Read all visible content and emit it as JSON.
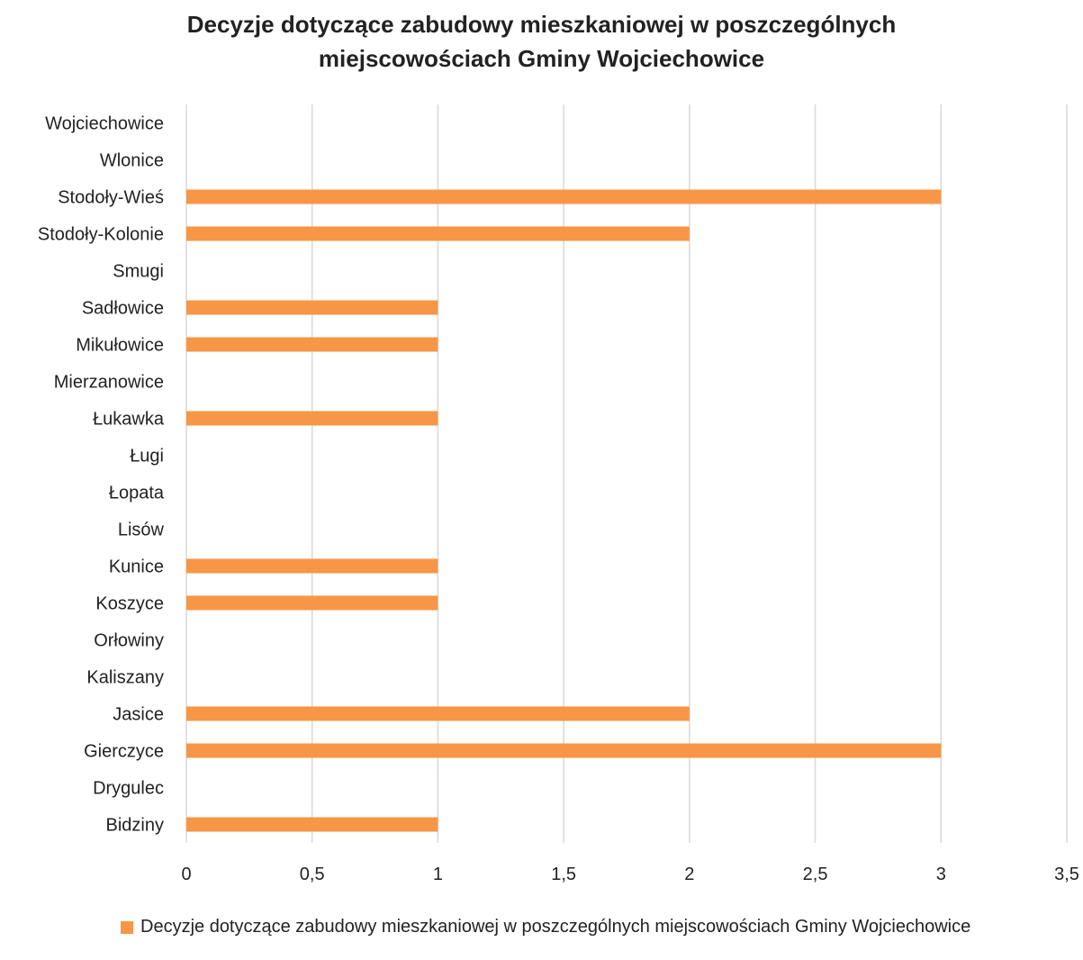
{
  "chart_data": {
    "type": "bar",
    "orientation": "horizontal",
    "title_lines": [
      "Decyzje dotyczące zabudowy mieszkaniowej w poszczególnych",
      "miejscowościach Gminy Wojciechowice"
    ],
    "categories": [
      "Bidziny",
      "Drygulec",
      "Gierczyce",
      "Jasice",
      "Kaliszany",
      "Orłowiny",
      "Koszyce",
      "Kunice",
      "Lisów",
      "Łopata",
      "Ługi",
      "Łukawka",
      "Mierzanowice",
      "Mikułowice",
      "Sadłowice",
      "Smugi",
      "Stodoły-Kolonie",
      "Stodoły-Wieś",
      "Wlonice",
      "Wojciechowice"
    ],
    "series": [
      {
        "name": "Decyzje dotyczące zabudowy mieszkaniowej w poszczególnych miejscowościach Gminy Wojciechowice",
        "values": [
          1,
          0,
          3,
          2,
          0,
          0,
          1,
          1,
          0,
          0,
          0,
          1,
          0,
          1,
          1,
          0,
          2,
          3,
          0,
          0
        ],
        "color": "#F79646"
      }
    ],
    "xlim": [
      0,
      3.5
    ],
    "x_ticks": [
      "0",
      "0,5",
      "1",
      "1,5",
      "2",
      "2,5",
      "3",
      "3,5"
    ],
    "xlabel": "",
    "ylabel": "",
    "grid": true,
    "gridline_color": "#D9D9D9",
    "legend_position": "bottom"
  }
}
